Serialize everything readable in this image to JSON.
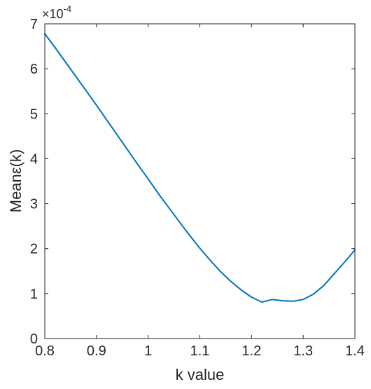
{
  "chart_data": {
    "type": "line",
    "title": "",
    "xlabel": "k value",
    "ylabel": "Meanε(k)",
    "y_exponent_label": "×10",
    "y_exponent_power": "-4",
    "xlim": [
      0.8,
      1.4
    ],
    "ylim": [
      0,
      7
    ],
    "x_ticks": [
      0.8,
      0.9,
      1.0,
      1.1,
      1.2,
      1.3,
      1.4
    ],
    "x_tick_labels": [
      "0.8",
      "0.9",
      "1",
      "1.1",
      "1.2",
      "1.3",
      "1.4"
    ],
    "y_ticks": [
      0,
      1,
      2,
      3,
      4,
      5,
      6,
      7
    ],
    "y_tick_labels": [
      "0",
      "1",
      "2",
      "3",
      "4",
      "5",
      "6",
      "7"
    ],
    "grid": false,
    "line_color": "#0072bd",
    "series": [
      {
        "x": [
          0.8,
          0.82,
          0.84,
          0.86,
          0.88,
          0.9,
          0.92,
          0.94,
          0.96,
          0.98,
          1.0,
          1.02,
          1.04,
          1.06,
          1.08,
          1.1,
          1.12,
          1.14,
          1.16,
          1.18,
          1.2,
          1.22,
          1.24,
          1.26,
          1.28,
          1.3,
          1.32,
          1.34,
          1.36,
          1.38,
          1.4
        ],
        "y": [
          6.78,
          6.47,
          6.15,
          5.83,
          5.51,
          5.19,
          4.86,
          4.53,
          4.2,
          3.87,
          3.55,
          3.22,
          2.91,
          2.6,
          2.3,
          2.01,
          1.74,
          1.49,
          1.27,
          1.08,
          0.92,
          0.81,
          0.87,
          0.84,
          0.83,
          0.87,
          0.99,
          1.18,
          1.44,
          1.7,
          1.97
        ]
      }
    ]
  }
}
